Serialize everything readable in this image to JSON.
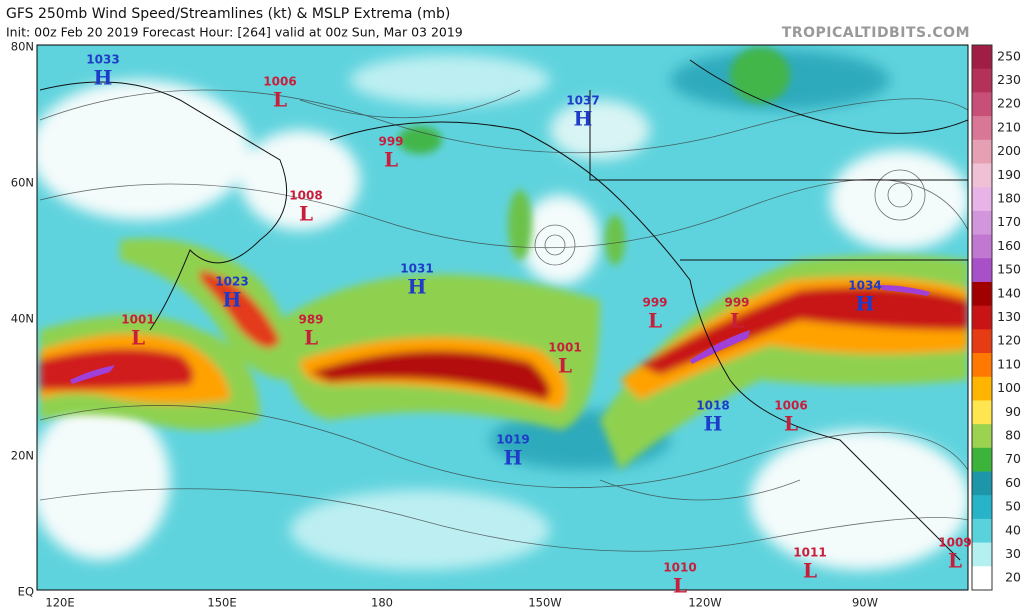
{
  "header": {
    "title": "GFS 250mb Wind Speed/Streamlines (kt) & MSLP Extrema (mb)",
    "subtitle": "Init: 00z Feb 20 2019   Forecast Hour: [264]   valid at 00z Sun, Mar 03 2019",
    "site": "TROPICALTIDBITS.COM"
  },
  "latitude_labels": [
    "80N",
    "60N",
    "40N",
    "20N",
    "EQ"
  ],
  "longitude_labels": [
    "120E",
    "150E",
    "180",
    "150W",
    "120W",
    "90W"
  ],
  "colorbar": {
    "labels": [
      "250",
      "230",
      "220",
      "210",
      "200",
      "190",
      "180",
      "170",
      "160",
      "150",
      "140",
      "130",
      "120",
      "110",
      "100",
      "90",
      "80",
      "70",
      "60",
      "50",
      "40",
      "30",
      "20"
    ],
    "colors": [
      "#a01e46",
      "#b4325a",
      "#c85078",
      "#d87896",
      "#e6a0b4",
      "#f0c0d4",
      "#e8b4e8",
      "#d296dc",
      "#c078d0",
      "#a850c8",
      "#a00000",
      "#c81414",
      "#e63c14",
      "#ff7800",
      "#ffb400",
      "#ffe650",
      "#9bd250",
      "#3cb43c",
      "#1e96aa",
      "#28b4c8",
      "#5ad2dc",
      "#b4f0f0",
      "#ffffff"
    ]
  },
  "pressure_systems": [
    {
      "type": "H",
      "value": "1033"
    },
    {
      "type": "L",
      "value": "1006"
    },
    {
      "type": "L",
      "value": "999"
    },
    {
      "type": "H",
      "value": "1037"
    },
    {
      "type": "L",
      "value": "1008"
    },
    {
      "type": "H",
      "value": "1023"
    },
    {
      "type": "H",
      "value": "1031"
    },
    {
      "type": "L",
      "value": "989"
    },
    {
      "type": "L",
      "value": "1001"
    },
    {
      "type": "L",
      "value": "999"
    },
    {
      "type": "L",
      "value": "999"
    },
    {
      "type": "H",
      "value": "1034"
    },
    {
      "type": "L",
      "value": "1001"
    },
    {
      "type": "H",
      "value": "1018"
    },
    {
      "type": "L",
      "value": "1006"
    },
    {
      "type": "H",
      "value": "1019"
    },
    {
      "type": "L",
      "value": "1010"
    },
    {
      "type": "L",
      "value": "1011"
    },
    {
      "type": "L",
      "value": "1009"
    }
  ]
}
